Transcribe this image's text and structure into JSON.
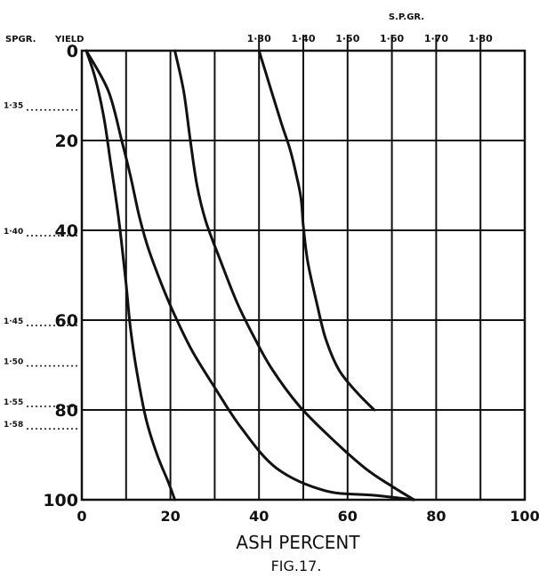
{
  "chart_data": {
    "type": "line",
    "title": "",
    "xlabel": "ASH PERCENT",
    "caption": "FIG.17.",
    "left_header_sg": "SPGR.",
    "left_header_yield": "YIELD",
    "top_axis_label": "S.P.GR.",
    "xlim": [
      0,
      100
    ],
    "ylim": [
      0,
      100
    ],
    "y_inverted": true,
    "grid": true,
    "x_ticks": [
      "0",
      "20",
      "40",
      "60",
      "80",
      "100"
    ],
    "y_ticks": [
      "0",
      "20",
      "40",
      "60",
      "80",
      "100"
    ],
    "top_ticks": [
      {
        "label": "1·30",
        "x": 40
      },
      {
        "label": "1·40",
        "x": 50
      },
      {
        "label": "1·50",
        "x": 60
      },
      {
        "label": "1·60",
        "x": 70
      },
      {
        "label": "1·70",
        "x": 80
      },
      {
        "label": "1·80",
        "x": 90
      }
    ],
    "sg_markers": [
      {
        "label": "1·35",
        "y": 13
      },
      {
        "label": "1·40",
        "y": 41
      },
      {
        "label": "1·45",
        "y": 61
      },
      {
        "label": "1·50",
        "y": 70
      },
      {
        "label": "1·55",
        "y": 79
      },
      {
        "label": "1·58",
        "y": 84
      }
    ],
    "series": [
      {
        "points": [
          [
            1,
            0
          ],
          [
            3,
            6
          ],
          [
            5,
            15
          ],
          [
            6.5,
            25
          ],
          [
            8,
            35
          ],
          [
            9,
            43
          ],
          [
            10,
            52
          ],
          [
            11,
            62
          ],
          [
            12.5,
            72
          ],
          [
            14.5,
            82
          ],
          [
            17,
            90
          ],
          [
            19.5,
            96
          ],
          [
            21,
            100
          ]
        ]
      },
      {
        "points": [
          [
            1,
            0
          ],
          [
            6,
            9
          ],
          [
            9,
            20
          ],
          [
            11,
            28
          ],
          [
            13,
            37
          ],
          [
            15,
            44
          ],
          [
            18,
            52
          ],
          [
            21,
            59
          ],
          [
            25,
            67
          ],
          [
            30,
            75
          ],
          [
            36,
            84
          ],
          [
            44,
            93
          ],
          [
            55,
            98
          ],
          [
            66,
            99
          ],
          [
            75,
            100
          ]
        ]
      },
      {
        "points": [
          [
            21,
            0
          ],
          [
            23,
            9
          ],
          [
            24.5,
            20
          ],
          [
            26,
            30
          ],
          [
            28,
            38
          ],
          [
            31,
            46
          ],
          [
            35,
            56
          ],
          [
            39,
            64
          ],
          [
            43,
            71
          ],
          [
            49,
            79
          ],
          [
            56,
            86
          ],
          [
            64,
            93
          ],
          [
            70,
            97
          ],
          [
            75,
            100
          ]
        ]
      },
      {
        "points": [
          [
            40,
            0
          ],
          [
            42.5,
            8
          ],
          [
            45,
            16
          ],
          [
            47,
            22
          ],
          [
            48.5,
            28
          ],
          [
            49.5,
            33
          ],
          [
            50,
            39
          ],
          [
            51,
            47
          ],
          [
            53,
            56
          ],
          [
            55,
            64
          ],
          [
            58,
            71
          ],
          [
            62,
            76
          ],
          [
            66,
            80
          ]
        ]
      }
    ]
  }
}
